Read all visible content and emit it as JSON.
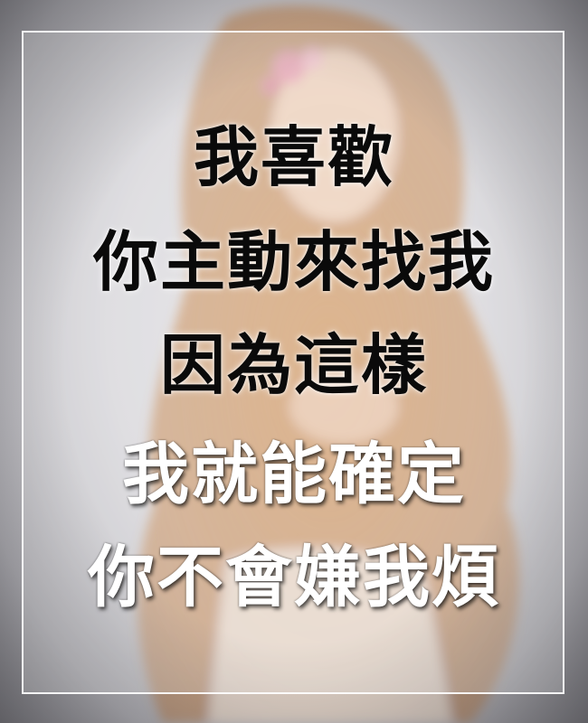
{
  "quote": {
    "lines": [
      "我喜歡",
      "你主動來找我",
      "因為這樣",
      "我就能確定",
      "你不會嫌我煩"
    ]
  },
  "colors": {
    "dark_text": "#0a0a0a",
    "light_text": "#ffffff",
    "frame": "#ffffff",
    "hair": "#c98b4f",
    "background": "#d8d7db"
  }
}
